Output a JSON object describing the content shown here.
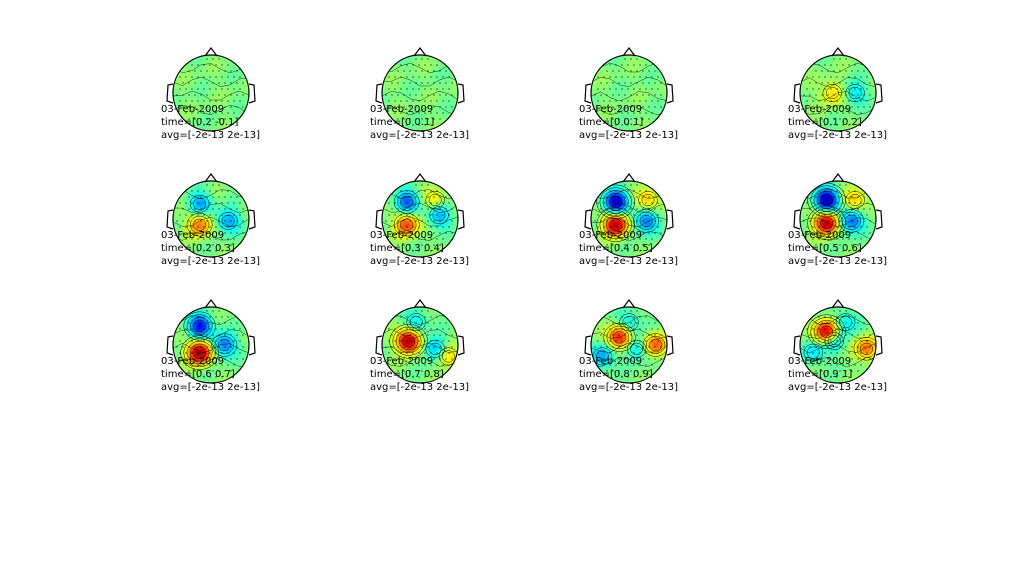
{
  "chart_data": {
    "type": "heatmap",
    "colormap": "jet",
    "colors": [
      "#00008f",
      "#0000ff",
      "#00ffff",
      "#80ff80",
      "#ffff00",
      "#ff0000",
      "#800000"
    ],
    "panels": [
      {
        "date": "03-Feb-2009",
        "time": "time=[0.2 -0.1]",
        "avg": "avg=[-2e-13 2e-13]",
        "blobs": []
      },
      {
        "date": "03-Feb-2009",
        "time": "time=[0 0.1]",
        "avg": "avg=[-2e-13 2e-13]",
        "blobs": []
      },
      {
        "date": "03-Feb-2009",
        "time": "time=[0 0.1]",
        "avg": "avg=[-2e-13 2e-13]",
        "blobs": []
      },
      {
        "date": "03-Feb-2009",
        "time": "time=[0.1 0.2]",
        "avg": "avg=[-2e-13 2e-13]",
        "blobs": [
          {
            "x": -0.15,
            "y": 0.0,
            "v": 0.35
          },
          {
            "x": 0.45,
            "y": 0.0,
            "v": -0.3
          }
        ]
      },
      {
        "date": "03-Feb-2009",
        "time": "time=[0.2 0.3]",
        "avg": "avg=[-2e-13 2e-13]",
        "blobs": [
          {
            "x": -0.3,
            "y": -0.4,
            "v": -0.45
          },
          {
            "x": -0.3,
            "y": 0.15,
            "v": 0.55
          },
          {
            "x": 0.45,
            "y": 0.05,
            "v": -0.45
          }
        ]
      },
      {
        "date": "03-Feb-2009",
        "time": "time=[0.3 0.4]",
        "avg": "avg=[-2e-13 2e-13]",
        "blobs": [
          {
            "x": -0.35,
            "y": -0.45,
            "v": -0.6
          },
          {
            "x": -0.35,
            "y": 0.15,
            "v": 0.65
          },
          {
            "x": 0.5,
            "y": -0.1,
            "v": -0.45
          },
          {
            "x": 0.4,
            "y": -0.5,
            "v": 0.3
          }
        ]
      },
      {
        "date": "03-Feb-2009",
        "time": "time=[0.4 0.5]",
        "avg": "avg=[-2e-13 2e-13]",
        "blobs": [
          {
            "x": -0.35,
            "y": -0.45,
            "v": -0.9
          },
          {
            "x": -0.35,
            "y": 0.15,
            "v": 0.95
          },
          {
            "x": 0.45,
            "y": 0.05,
            "v": -0.55
          },
          {
            "x": 0.5,
            "y": -0.5,
            "v": 0.4
          }
        ]
      },
      {
        "date": "03-Feb-2009",
        "time": "time=[0.5 0.6]",
        "avg": "avg=[-2e-13 2e-13]",
        "blobs": [
          {
            "x": -0.3,
            "y": -0.5,
            "v": -0.95
          },
          {
            "x": -0.3,
            "y": 0.1,
            "v": 0.95
          },
          {
            "x": 0.35,
            "y": 0.05,
            "v": -0.6
          },
          {
            "x": 0.45,
            "y": -0.5,
            "v": 0.4
          }
        ]
      },
      {
        "date": "03-Feb-2009",
        "time": "time=[0.6 0.7]",
        "avg": "avg=[-2e-13 2e-13]",
        "blobs": [
          {
            "x": -0.3,
            "y": -0.5,
            "v": -0.75
          },
          {
            "x": -0.3,
            "y": 0.2,
            "v": 1.0
          },
          {
            "x": 0.35,
            "y": 0.0,
            "v": -0.55
          }
        ]
      },
      {
        "date": "03-Feb-2009",
        "time": "time=[0.7 0.8]",
        "avg": "avg=[-2e-13 2e-13]",
        "blobs": [
          {
            "x": -0.3,
            "y": -0.1,
            "v": 1.0
          },
          {
            "x": 0.4,
            "y": 0.1,
            "v": -0.45
          },
          {
            "x": 0.75,
            "y": 0.3,
            "v": 0.4
          },
          {
            "x": -0.1,
            "y": -0.6,
            "v": -0.3
          }
        ]
      },
      {
        "date": "03-Feb-2009",
        "time": "time=[0.8 0.9]",
        "avg": "avg=[-2e-13 2e-13]",
        "blobs": [
          {
            "x": -0.25,
            "y": -0.2,
            "v": 0.8
          },
          {
            "x": 0.7,
            "y": 0.0,
            "v": 0.6
          },
          {
            "x": -0.7,
            "y": 0.3,
            "v": -0.45
          },
          {
            "x": 0.2,
            "y": 0.1,
            "v": -0.35
          },
          {
            "x": 0.0,
            "y": -0.6,
            "v": -0.3
          }
        ]
      },
      {
        "date": "03-Feb-2009",
        "time": "time=[0.9 1]",
        "avg": "avg=[-2e-13 2e-13]",
        "blobs": [
          {
            "x": -0.3,
            "y": -0.35,
            "v": 0.9
          },
          {
            "x": 0.75,
            "y": 0.1,
            "v": 0.55
          },
          {
            "x": -0.1,
            "y": -0.1,
            "v": -0.35
          },
          {
            "x": 0.2,
            "y": -0.6,
            "v": -0.3
          },
          {
            "x": -0.65,
            "y": 0.2,
            "v": -0.3
          }
        ]
      }
    ]
  }
}
